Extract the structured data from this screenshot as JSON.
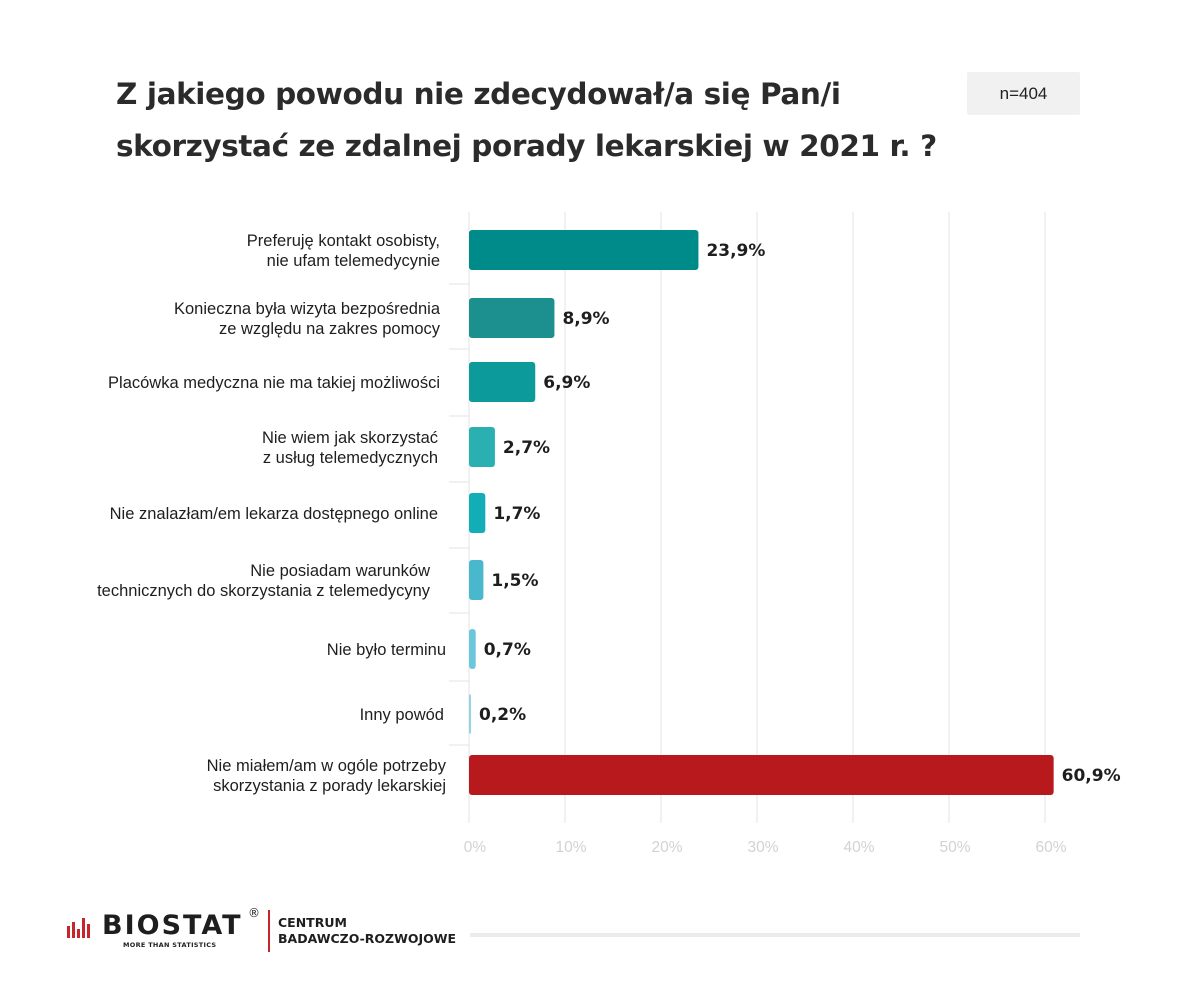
{
  "title_lines": [
    "Z jakiego powodu nie zdecydował/a się Pan/i",
    "skorzystać ze zdalnej porady lekarskiej w 2021 r. ?"
  ],
  "sample_size": "n=404",
  "chart_data": {
    "type": "bar",
    "orientation": "horizontal",
    "title": "Z jakiego powodu nie zdecydował/a się Pan/i skorzystać ze zdalnej porady lekarskiej w 2021 r. ?",
    "categories": [
      [
        "Preferuję kontakt osobisty,",
        "nie ufam telemedycynie"
      ],
      [
        "Konieczna była wizyta bezpośrednia",
        "ze względu na zakres pomocy"
      ],
      [
        "Placówka medyczna nie ma takiej możliwości"
      ],
      [
        "Nie wiem jak skorzystać",
        "z usług telemedycznych"
      ],
      [
        "Nie znalazłam/em lekarza dostępnego online"
      ],
      [
        "Nie posiadam warunków",
        "technicznych do skorzystania z telemedycyny"
      ],
      [
        "Nie było terminu"
      ],
      [
        "Inny powód"
      ],
      [
        "Nie miałem/am w ogóle potrzeby",
        "skorzystania z porady lekarskiej"
      ]
    ],
    "values": [
      23.9,
      8.9,
      6.9,
      2.7,
      1.7,
      1.5,
      0.7,
      0.2,
      60.9
    ],
    "value_labels": [
      "23,9%",
      "8,9%",
      "6,9%",
      "2,7%",
      "1,7%",
      "1,5%",
      "0,7%",
      "0,2%",
      "60,9%"
    ],
    "colors": [
      "#008b8b",
      "#1c8f8f",
      "#0d9a9a",
      "#2ab0b0",
      "#13adb8",
      "#4ab8cc",
      "#6dc7dc",
      "#93d3e3",
      "#b7191c"
    ],
    "xlim": [
      0,
      60
    ],
    "ticks": [
      0,
      10,
      20,
      30,
      40,
      50,
      60
    ],
    "tick_labels": [
      "0%",
      "10%",
      "20%",
      "30%",
      "40%",
      "50%",
      "60%"
    ],
    "grid": true,
    "xlabel": "",
    "ylabel": ""
  },
  "footer": {
    "logo_text": "BIOSTAT",
    "logo_registered": "®",
    "logo_tagline": "MORE THAN STATISTICS",
    "centrum_lines": [
      "CENTRUM",
      "BADAWCZO-ROZWOJOWE"
    ],
    "brand_color": "#c8242b"
  }
}
